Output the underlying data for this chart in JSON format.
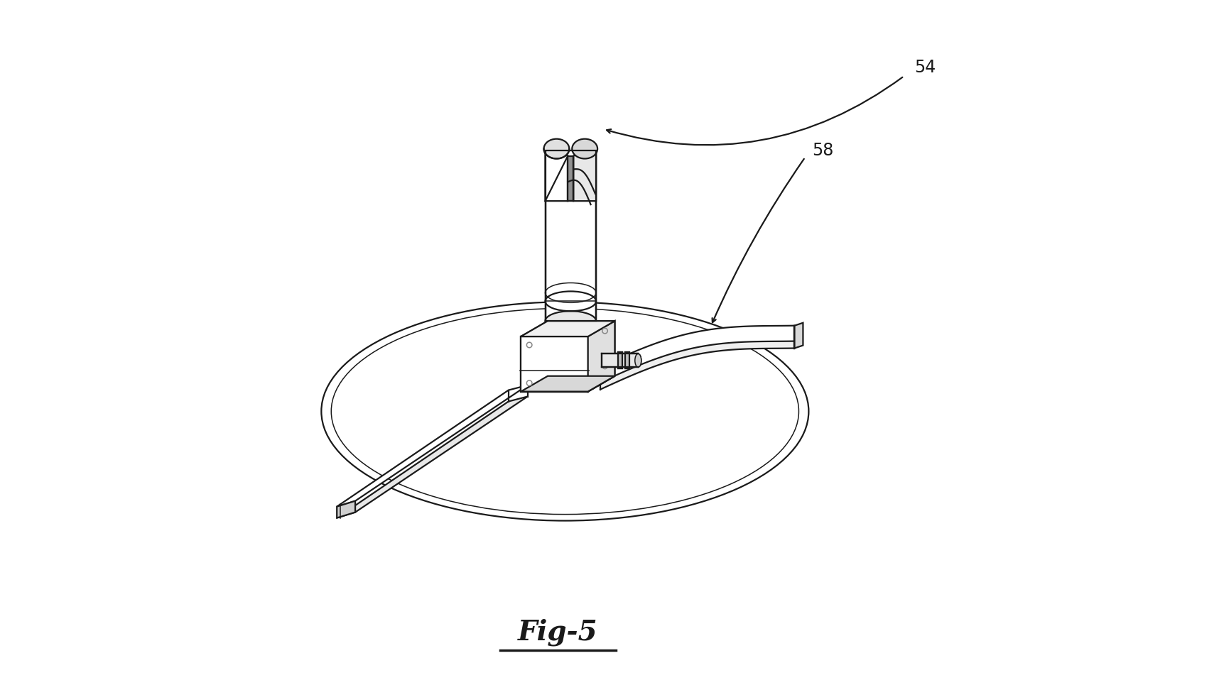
{
  "title": "Fig-5",
  "label_54": "54",
  "label_58": "58",
  "bg_color": "#ffffff",
  "line_color": "#1a1a1a",
  "fig_width": 17.16,
  "fig_height": 9.65,
  "dpi": 100
}
